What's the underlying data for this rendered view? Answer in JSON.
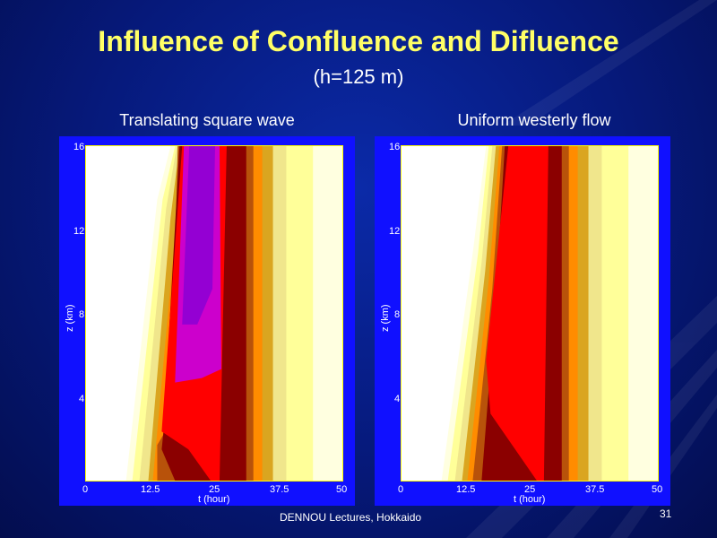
{
  "slide": {
    "title": "Influence of Confluence and Difluence",
    "subtitle": "(h=125 m)",
    "footer": "DENNOU Lectures, Hokkaido",
    "page_number": "31"
  },
  "panels": [
    {
      "title": "Translating square wave",
      "xlabel": "t (hour)",
      "ylabel": "z (km)",
      "xticks": [
        "0",
        "12.5",
        "25",
        "37.5",
        "50"
      ],
      "yticks": [
        "4",
        "8",
        "12",
        "16"
      ]
    },
    {
      "title": "Uniform westerly flow",
      "xlabel": "t (hour)",
      "ylabel": "z (km)",
      "xticks": [
        "0",
        "12.5",
        "25",
        "37.5",
        "50"
      ],
      "yticks": [
        "4",
        "8",
        "12",
        "16"
      ]
    }
  ],
  "colors": {
    "background": "#06197a",
    "title": "#ffff66",
    "frame": "#1010ff",
    "contours": [
      "#ffffff",
      "#ffffe0",
      "#ffff99",
      "#f0e68c",
      "#daa520",
      "#ff8c00",
      "#b8520a",
      "#8b0000",
      "#ff0000",
      "#cc00cc",
      "#9400d3"
    ]
  }
}
